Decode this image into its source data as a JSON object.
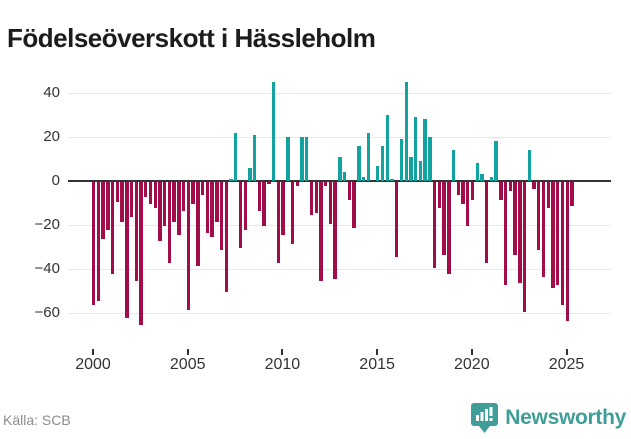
{
  "title": "Födelseöverskott i Hässleholm",
  "footer": {
    "source": "Källa: SCB",
    "brand": "Newsworthy",
    "brand_color": "#3f9f98",
    "brand_icon": "newsworthy-bar-chart-bubble"
  },
  "chart_data": {
    "type": "bar",
    "title": "Födelseöverskott i Hässleholm",
    "xlabel": "",
    "ylabel": "",
    "x_start_year": 2000,
    "bars_per_year": 4,
    "x_ticks": [
      2000,
      2005,
      2010,
      2015,
      2020,
      2025
    ],
    "y_ticks": [
      40,
      20,
      0,
      -20,
      -40,
      -60
    ],
    "ylim": [
      -70,
      50
    ],
    "grid": true,
    "legend": false,
    "colors": {
      "positive": "#12a2a0",
      "negative": "#a00d49"
    },
    "categories": [
      "2000 Q1",
      "2000 Q2",
      "2000 Q3",
      "2000 Q4",
      "2001 Q1",
      "2001 Q2",
      "2001 Q3",
      "2001 Q4",
      "2002 Q1",
      "2002 Q2",
      "2002 Q3",
      "2002 Q4",
      "2003 Q1",
      "2003 Q2",
      "2003 Q3",
      "2003 Q4",
      "2004 Q1",
      "2004 Q2",
      "2004 Q3",
      "2004 Q4",
      "2005 Q1",
      "2005 Q2",
      "2005 Q3",
      "2005 Q4",
      "2006 Q1",
      "2006 Q2",
      "2006 Q3",
      "2006 Q4",
      "2007 Q1",
      "2007 Q2",
      "2007 Q3",
      "2007 Q4",
      "2008 Q1",
      "2008 Q2",
      "2008 Q3",
      "2008 Q4",
      "2009 Q1",
      "2009 Q2",
      "2009 Q3",
      "2009 Q4",
      "2010 Q1",
      "2010 Q2",
      "2010 Q3",
      "2010 Q4",
      "2011 Q1",
      "2011 Q2",
      "2011 Q3",
      "2011 Q4",
      "2012 Q1",
      "2012 Q2",
      "2012 Q3",
      "2012 Q4",
      "2013 Q1",
      "2013 Q2",
      "2013 Q3",
      "2013 Q4",
      "2014 Q1",
      "2014 Q2",
      "2014 Q3",
      "2014 Q4",
      "2015 Q1",
      "2015 Q2",
      "2015 Q3",
      "2015 Q4",
      "2016 Q1",
      "2016 Q2",
      "2016 Q3",
      "2016 Q4",
      "2017 Q1",
      "2017 Q2",
      "2017 Q3",
      "2017 Q4",
      "2018 Q1",
      "2018 Q2",
      "2018 Q3",
      "2018 Q4",
      "2019 Q1",
      "2019 Q2",
      "2019 Q3",
      "2019 Q4",
      "2020 Q1",
      "2020 Q2",
      "2020 Q3",
      "2020 Q4",
      "2021 Q1",
      "2021 Q2",
      "2021 Q3",
      "2021 Q4",
      "2022 Q1",
      "2022 Q2",
      "2022 Q3",
      "2022 Q4",
      "2023 Q1",
      "2023 Q2",
      "2023 Q3",
      "2023 Q4",
      "2024 Q1",
      "2024 Q2",
      "2024 Q3",
      "2024 Q4",
      "2025 Q1",
      "2025 Q2"
    ],
    "values": [
      -56,
      -54,
      -26,
      -22,
      -42,
      -9,
      -18,
      -62,
      -16,
      -45,
      -65,
      -7,
      -10,
      -12,
      -27,
      -20,
      -37,
      -18,
      -24,
      -13,
      -58,
      -10,
      -38,
      -6,
      -23,
      -25,
      -18,
      -31,
      -50,
      1,
      22,
      -30,
      -22,
      6,
      21,
      -13,
      -20,
      -1,
      45,
      -37,
      -24,
      20,
      -28,
      -2,
      20,
      20,
      -15,
      -14,
      -45,
      -2,
      -19,
      -44,
      11,
      4,
      -8,
      -21,
      16,
      2,
      22,
      0,
      7,
      16,
      30,
      1,
      -34,
      19,
      45,
      11,
      29,
      9,
      28,
      20,
      -39,
      -12,
      -33,
      -42,
      14,
      -6,
      -10,
      -20,
      -8,
      8,
      3,
      -37,
      2,
      18,
      -8,
      -47,
      -4,
      -33,
      -46,
      -59,
      14,
      -3,
      -31,
      -43,
      -12,
      -48,
      -47,
      -56,
      -63,
      -11
    ]
  }
}
